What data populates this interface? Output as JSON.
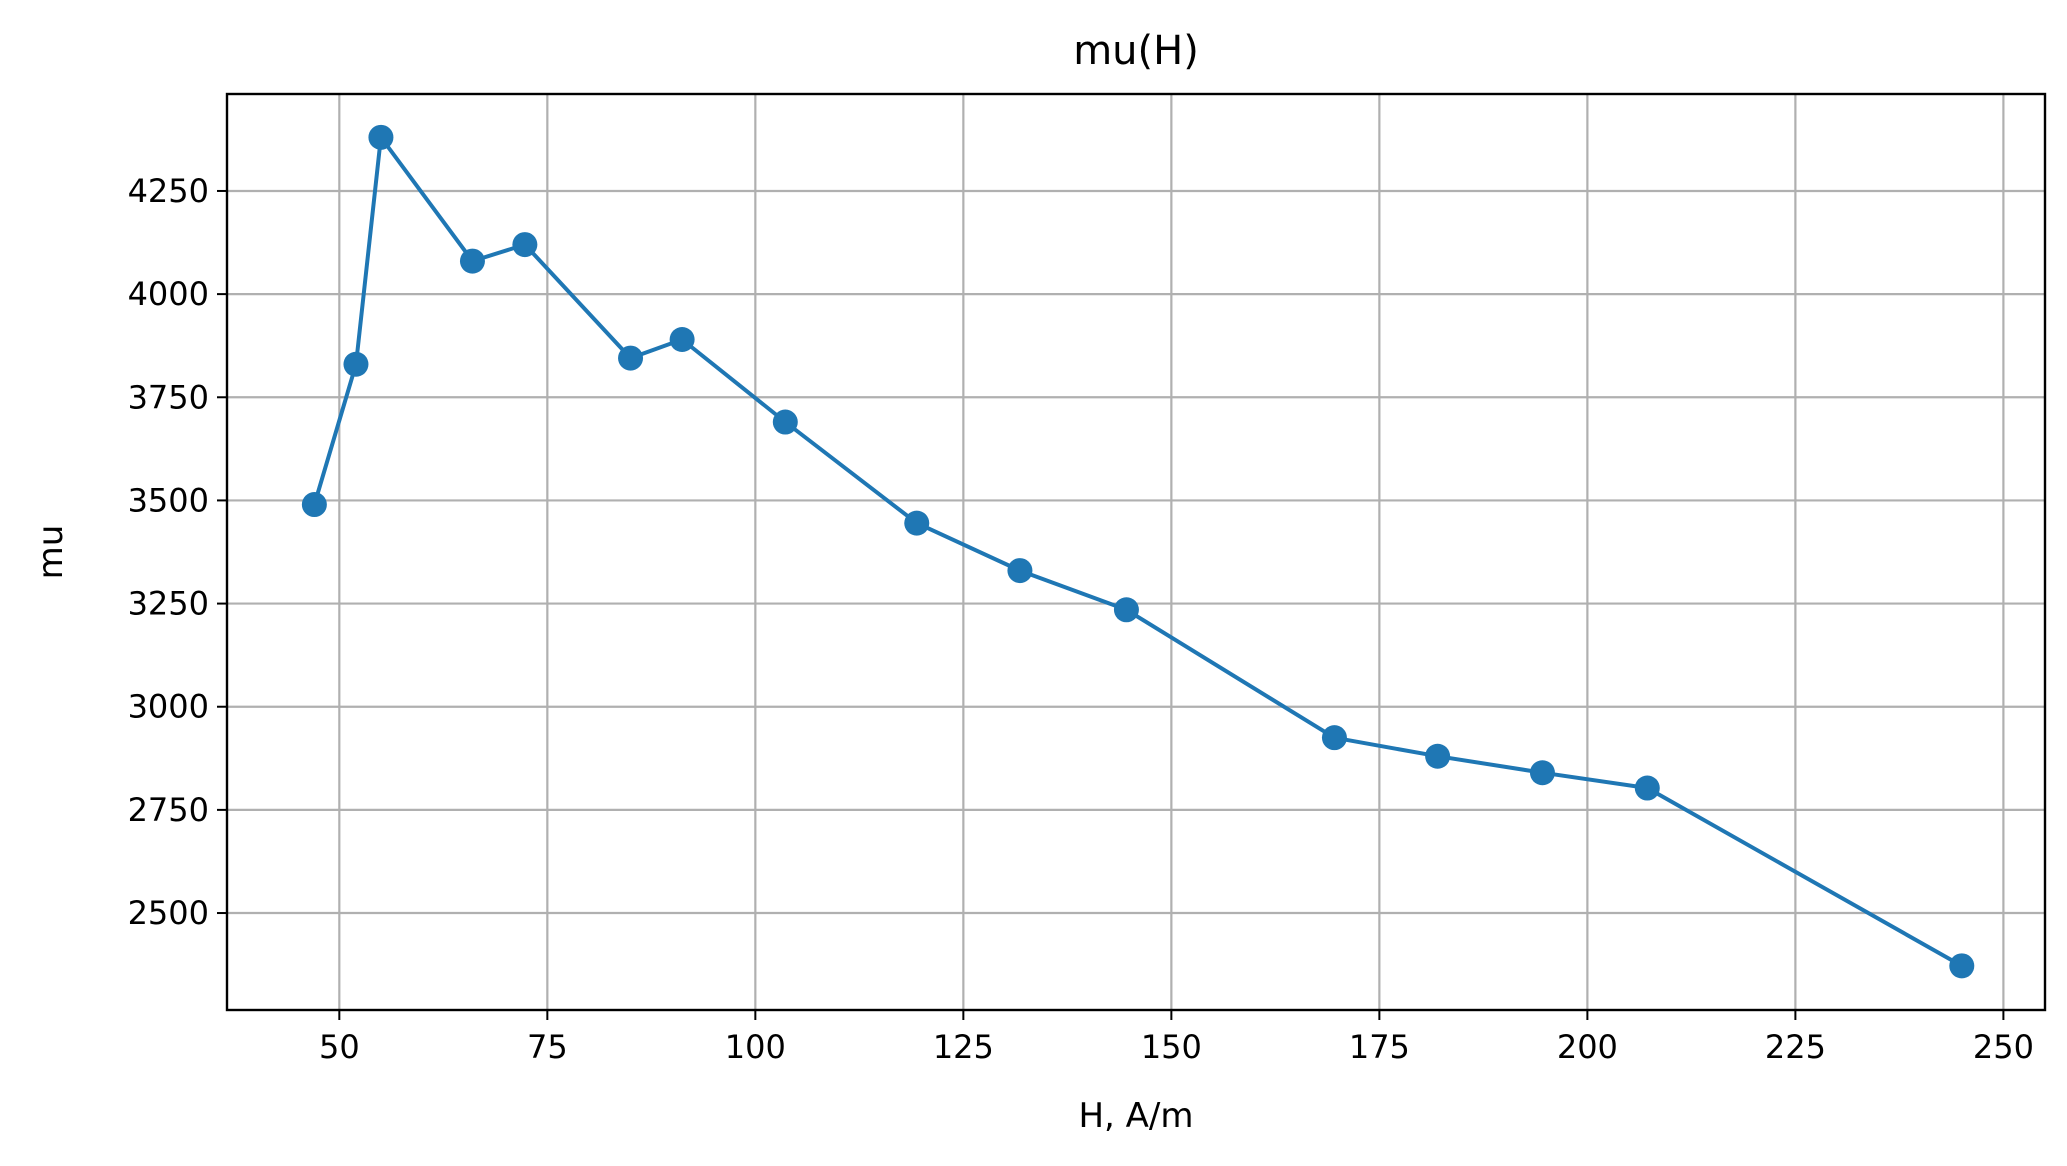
{
  "chart_data": {
    "type": "line",
    "title": "mu(H)",
    "xlabel": "H, A/m",
    "ylabel": "mu",
    "xlim": [
      36.5,
      255
    ],
    "ylim": [
      2265,
      4485
    ],
    "xticks": [
      50,
      75,
      100,
      125,
      150,
      175,
      200,
      225,
      250
    ],
    "yticks": [
      2500,
      2750,
      3000,
      3250,
      3500,
      3750,
      4000,
      4250
    ],
    "grid": true,
    "line_color": "#1f77b4",
    "marker": "circle",
    "series": [
      {
        "x": [
          47.0,
          52.0,
          55.0,
          66.0,
          72.3,
          85.0,
          91.2,
          103.6,
          119.4,
          131.8,
          144.6,
          169.6,
          182.0,
          194.6,
          207.2,
          245.0
        ],
        "y": [
          3490,
          3830,
          4380,
          4080,
          4120,
          3845,
          3890,
          3690,
          3445,
          3330,
          3235,
          2925,
          2880,
          2840,
          2803,
          2372
        ]
      }
    ]
  }
}
